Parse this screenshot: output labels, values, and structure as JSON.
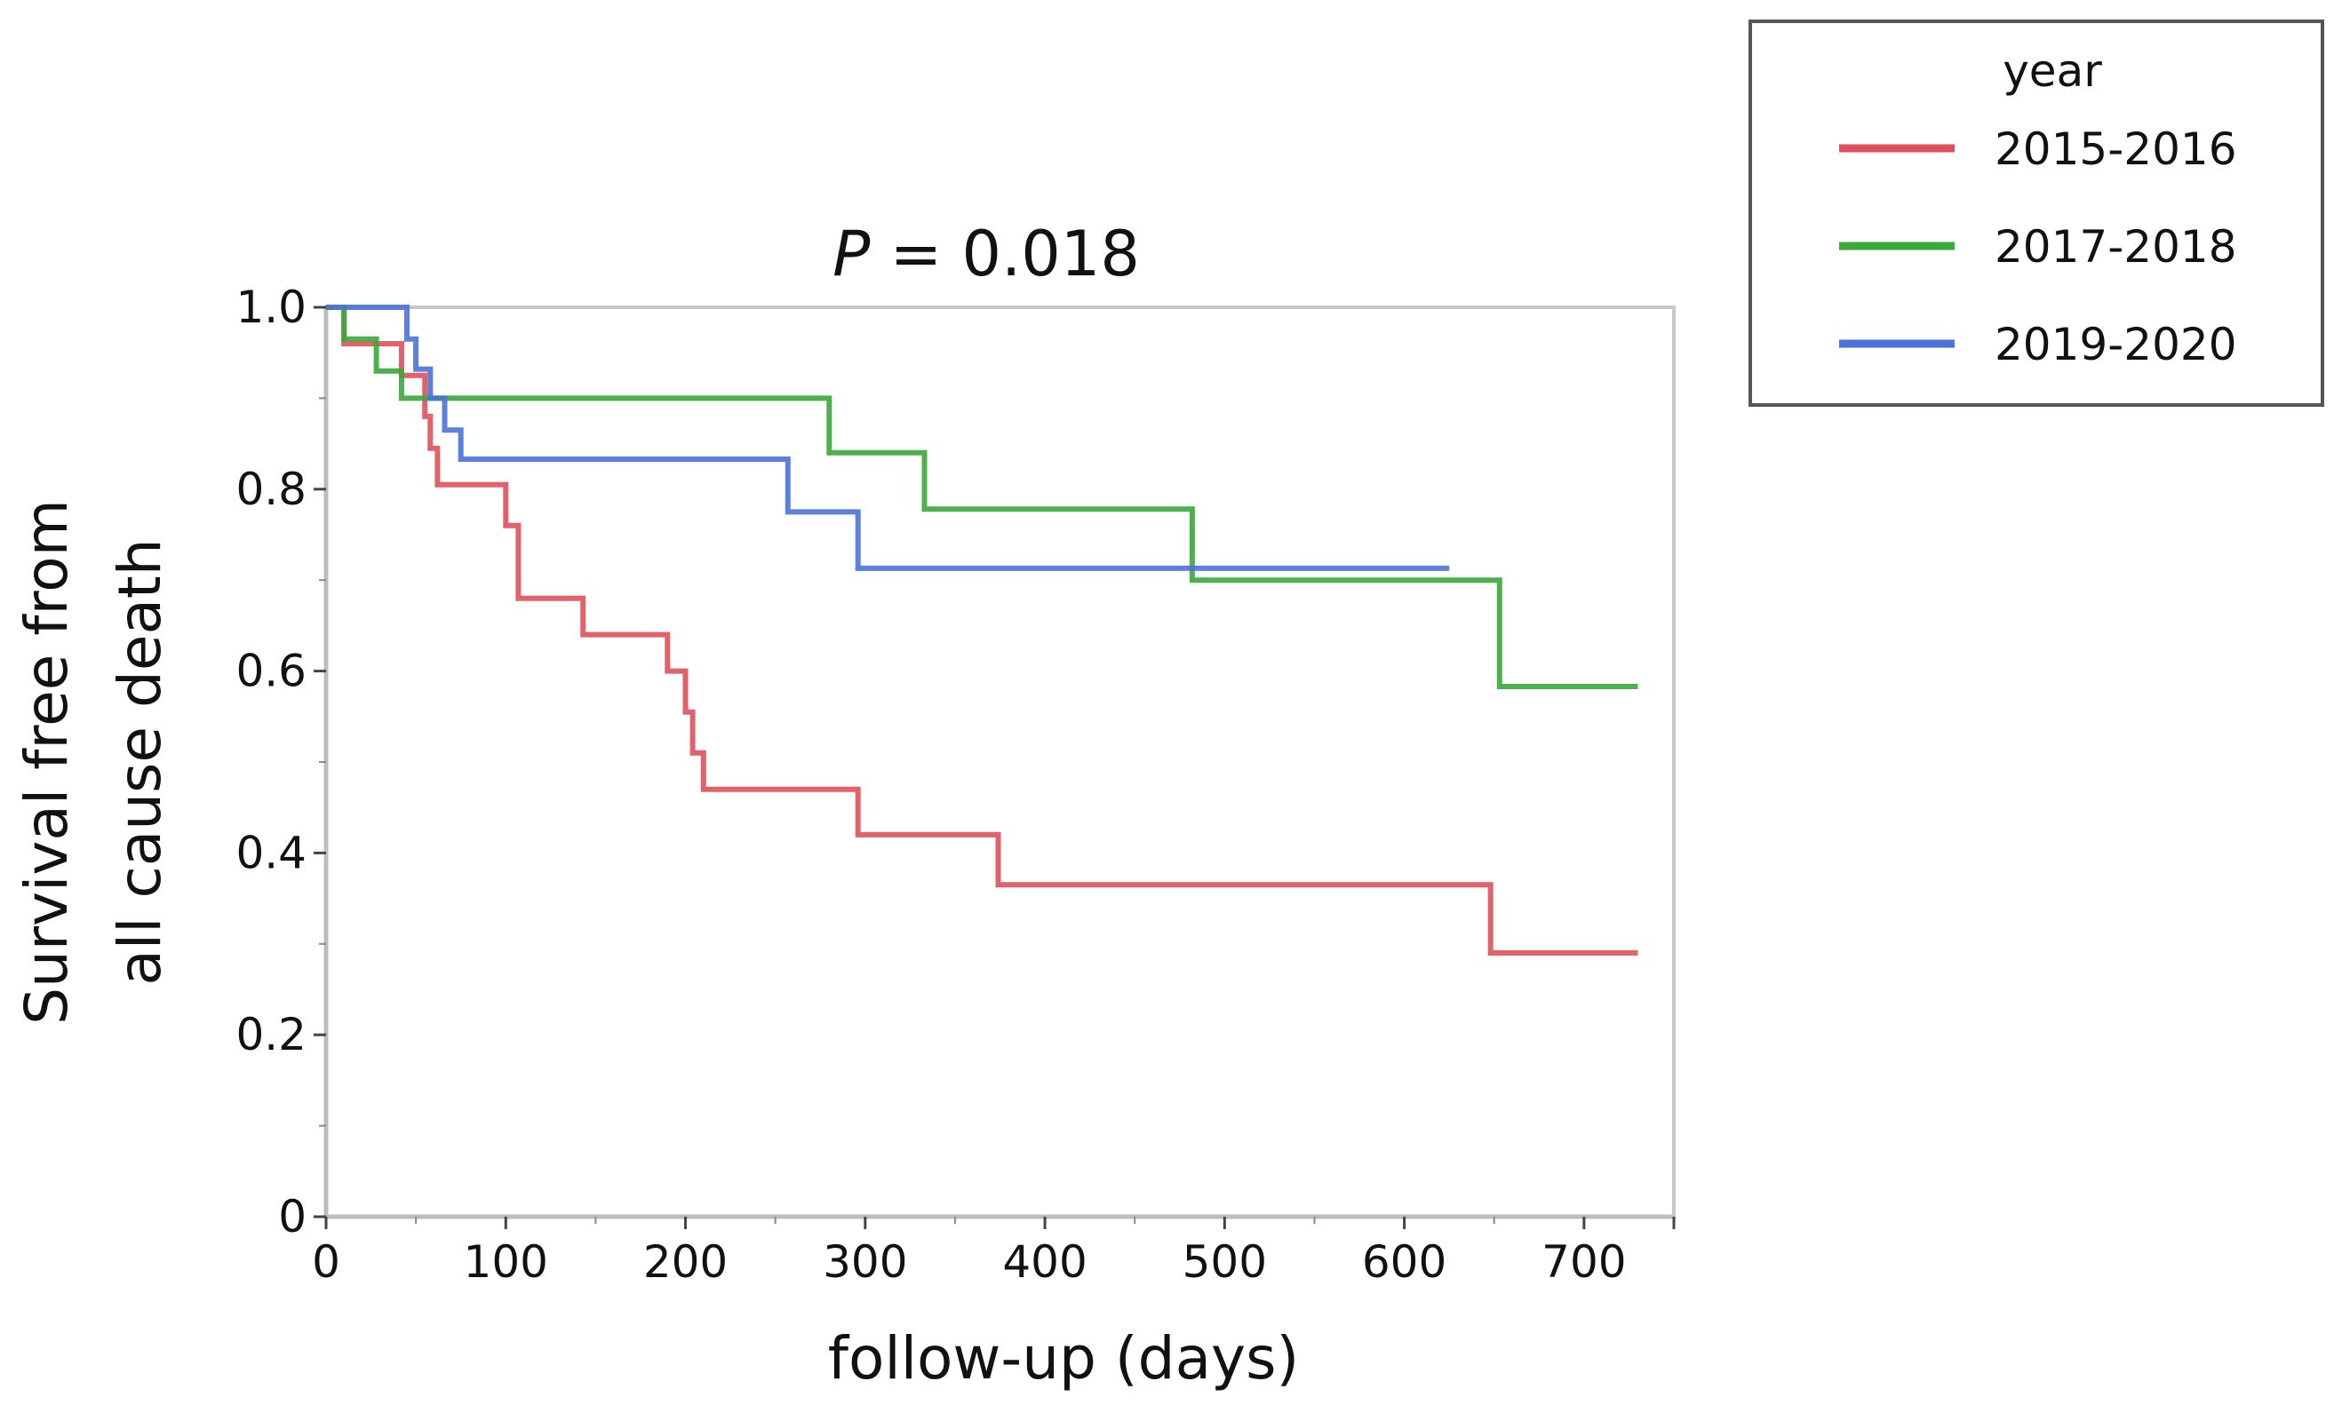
{
  "chart_data": {
    "type": "line",
    "step": true,
    "title_prefix": "P",
    "title_suffix": " = 0.018",
    "xlabel": "follow-up (days)",
    "ylabel_line1": "Survival free from",
    "ylabel_line2": "all cause death",
    "xlim": [
      0,
      750
    ],
    "ylim": [
      0,
      1.0
    ],
    "x_ticks": [
      0,
      100,
      200,
      300,
      400,
      500,
      600,
      700
    ],
    "x_tick_labels": [
      "0",
      "100",
      "200",
      "300",
      "400",
      "500",
      "600",
      "700"
    ],
    "y_ticks": [
      0,
      0.2,
      0.4,
      0.6,
      0.8,
      1.0
    ],
    "y_tick_labels": [
      "0",
      "0.2",
      "0.4",
      "0.6",
      "0.8",
      "1.0"
    ],
    "legend": {
      "title": "year",
      "position": "top-right outside"
    },
    "series": [
      {
        "name": "2015-2016",
        "color": "#e0505a",
        "points": [
          [
            0,
            1.0
          ],
          [
            10,
            1.0
          ],
          [
            10,
            0.96
          ],
          [
            42,
            0.96
          ],
          [
            42,
            0.925
          ],
          [
            55,
            0.925
          ],
          [
            55,
            0.88
          ],
          [
            58,
            0.88
          ],
          [
            58,
            0.845
          ],
          [
            62,
            0.845
          ],
          [
            62,
            0.805
          ],
          [
            100,
            0.805
          ],
          [
            100,
            0.76
          ],
          [
            107,
            0.76
          ],
          [
            107,
            0.68
          ],
          [
            143,
            0.68
          ],
          [
            143,
            0.64
          ],
          [
            190,
            0.64
          ],
          [
            190,
            0.6
          ],
          [
            200,
            0.6
          ],
          [
            200,
            0.555
          ],
          [
            204,
            0.555
          ],
          [
            204,
            0.51
          ],
          [
            210,
            0.51
          ],
          [
            210,
            0.47
          ],
          [
            296,
            0.47
          ],
          [
            296,
            0.42
          ],
          [
            374,
            0.42
          ],
          [
            374,
            0.365
          ],
          [
            648,
            0.365
          ],
          [
            648,
            0.29
          ],
          [
            730,
            0.29
          ]
        ]
      },
      {
        "name": "2017-2018",
        "color": "#3aa83a",
        "points": [
          [
            0,
            1.0
          ],
          [
            10,
            1.0
          ],
          [
            10,
            0.965
          ],
          [
            28,
            0.965
          ],
          [
            28,
            0.93
          ],
          [
            42,
            0.93
          ],
          [
            42,
            0.9
          ],
          [
            280,
            0.9
          ],
          [
            280,
            0.84
          ],
          [
            333,
            0.84
          ],
          [
            333,
            0.778
          ],
          [
            482,
            0.778
          ],
          [
            482,
            0.7
          ],
          [
            653,
            0.7
          ],
          [
            653,
            0.583
          ],
          [
            730,
            0.583
          ]
        ]
      },
      {
        "name": "2019-2020",
        "color": "#4a72d8",
        "points": [
          [
            0,
            1.0
          ],
          [
            45,
            1.0
          ],
          [
            45,
            0.965
          ],
          [
            50,
            0.965
          ],
          [
            50,
            0.932
          ],
          [
            58,
            0.932
          ],
          [
            58,
            0.9
          ],
          [
            66,
            0.9
          ],
          [
            66,
            0.865
          ],
          [
            75,
            0.865
          ],
          [
            75,
            0.833
          ],
          [
            257,
            0.833
          ],
          [
            257,
            0.775
          ],
          [
            296,
            0.775
          ],
          [
            296,
            0.713
          ],
          [
            625,
            0.713
          ]
        ]
      }
    ]
  }
}
